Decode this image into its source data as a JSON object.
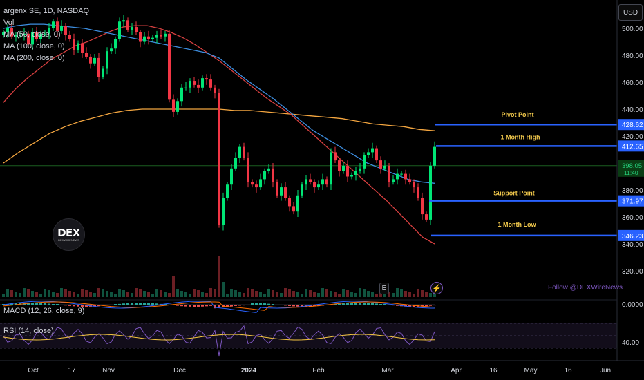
{
  "header": {
    "symbol": "argenx SE, 1D, NASDAQ",
    "volume": "Vol",
    "ma50": "MA (50, close, 0)",
    "ma100": "MA (100, close, 0)",
    "ma200": "MA (200, close, 0)"
  },
  "currency_button": "USD",
  "logo": {
    "name": "DEX",
    "tagline": "DEXWIRENEWS"
  },
  "follow_text": "Follow @DEXWireNews",
  "event_marker": "E",
  "macd_label": "MACD (12, 26, close, 9)",
  "rsi_label": "RSI (14, close)",
  "colors": {
    "up": "#26a69a",
    "down": "#ef5350",
    "up_bright": "#00e676",
    "down_bright": "#f23645",
    "ma50": "#3d8ee0",
    "ma100": "#d84040",
    "ma200": "#f4a640",
    "level_line": "#2962ff",
    "level_label": "#f2c94c",
    "rsi": "#7e57c2",
    "current_line": "#1b5e20"
  },
  "chart_data": {
    "type": "candlestick",
    "y_axis_ticks": [
      "500.00",
      "480.00",
      "460.00",
      "440.00",
      "420.00",
      "400.00",
      "380.00",
      "360.00",
      "340.00",
      "320.00"
    ],
    "x_axis_ticks": [
      "Oct",
      "17",
      "Nov",
      "Dec",
      "2024",
      "Feb",
      "Mar",
      "Apr",
      "16",
      "May",
      "16",
      "Jun"
    ],
    "macd_tick": "0.0000",
    "rsi_tick": "40.00",
    "current_price": "398.05",
    "countdown": "11:40",
    "levels": [
      {
        "name": "Pivot Point",
        "price": 428.62,
        "label": "428.62"
      },
      {
        "name": "1 Month High",
        "price": 412.65,
        "label": "412.65"
      },
      {
        "name": "Support Point",
        "price": 371.97,
        "label": "371.97"
      },
      {
        "name": "1 Month Low",
        "price": 346.23,
        "label": "346.23"
      }
    ],
    "closes": [
      497,
      500,
      494,
      495,
      495,
      496,
      488,
      497,
      492,
      496,
      496,
      500,
      505,
      498,
      502,
      495,
      492,
      484,
      489,
      482,
      479,
      474,
      478,
      464,
      470,
      483,
      485,
      492,
      505,
      506,
      499,
      501,
      497,
      490,
      494,
      492,
      493,
      495,
      494,
      496,
      447,
      438,
      446,
      456,
      456,
      461,
      458,
      456,
      463,
      462,
      456,
      452,
      354,
      374,
      384,
      396,
      404,
      412,
      404,
      386,
      384,
      382,
      388,
      394,
      396,
      386,
      376,
      382,
      374,
      368,
      364,
      376,
      384,
      388,
      386,
      382,
      384,
      388,
      384,
      408,
      402,
      394,
      398,
      390,
      391,
      394,
      396,
      406,
      408,
      411,
      402,
      396,
      398,
      386,
      388,
      392,
      392,
      388,
      386,
      382,
      374,
      362,
      358,
      398,
      412
    ],
    "ma50": [
      500,
      502,
      503,
      503,
      502,
      501,
      500,
      498,
      496,
      494,
      492,
      490,
      488,
      486,
      484,
      482,
      478,
      470,
      462,
      455,
      448,
      440,
      432,
      424,
      418,
      412,
      406,
      400,
      396,
      392,
      388,
      386,
      385
    ],
    "ma100": [
      445,
      455,
      463,
      470,
      477,
      482,
      487,
      490,
      494,
      498,
      501,
      502,
      502,
      500,
      497,
      493,
      488,
      482,
      476,
      469,
      462,
      455,
      448,
      442,
      436,
      428,
      420,
      412,
      404,
      396,
      388,
      380,
      372,
      363,
      354,
      345,
      340
    ],
    "ma200": [
      400,
      408,
      415,
      422,
      427,
      431,
      434,
      437,
      439,
      440,
      440,
      440,
      440,
      440,
      440,
      439,
      439,
      438,
      437,
      436,
      435,
      434,
      433,
      431,
      429,
      428,
      427,
      425,
      424
    ]
  }
}
